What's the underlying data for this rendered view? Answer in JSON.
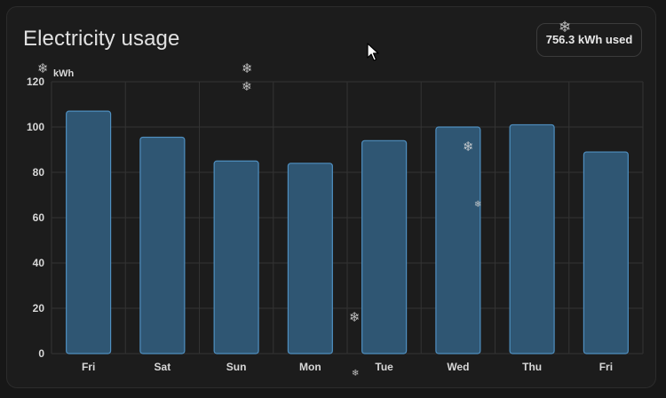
{
  "card": {
    "title": "Electricity usage",
    "usage_badge": "756.3 kWh used"
  },
  "colors": {
    "background": "#1c1c1c",
    "bar_fill": "#2f5673",
    "bar_stroke": "#4f8fc0",
    "grid": "#333333",
    "text": "#e1e1e1",
    "tick_text": "#d8d8d8"
  },
  "chart_data": {
    "type": "bar",
    "unit_label": "kWh",
    "categories": [
      "Fri",
      "Sat",
      "Sun",
      "Mon",
      "Tue",
      "Wed",
      "Thu",
      "Fri"
    ],
    "values": [
      107,
      95.5,
      85,
      84,
      94,
      100,
      101,
      89
    ],
    "ylim": [
      0,
      120
    ],
    "yticks": [
      0,
      20,
      40,
      60,
      80,
      100,
      120
    ],
    "grid": true,
    "legend": "none"
  },
  "decorations": {
    "snowflake_glyph": "❄",
    "cursor_icon": "mouse-pointer-icon"
  }
}
